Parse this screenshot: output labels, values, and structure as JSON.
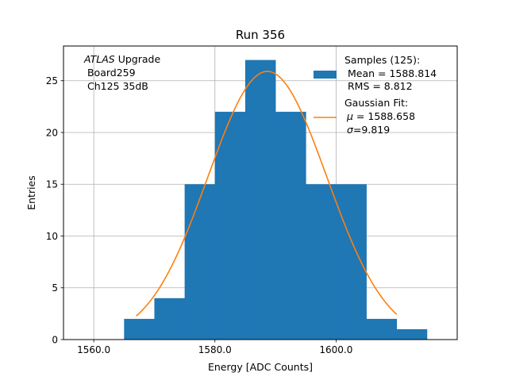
{
  "chart_data": {
    "type": "bar",
    "title": "Run 356",
    "xlabel": "Energy [ADC Counts]",
    "ylabel": "Entries",
    "xlim": [
      1555,
      1620
    ],
    "ylim": [
      0,
      28.35
    ],
    "grid": true,
    "x_ticks": [
      1560,
      1580,
      1600
    ],
    "x_tick_labels": [
      "1560.0",
      "1580.0",
      "1600.0"
    ],
    "y_ticks": [
      0,
      5,
      10,
      15,
      20,
      25
    ],
    "y_tick_labels": [
      "0",
      "5",
      "10",
      "15",
      "20",
      "25"
    ],
    "histogram": {
      "color": "#1f77b4",
      "bin_edges": [
        1565,
        1570,
        1575,
        1580,
        1585,
        1590,
        1595,
        1600,
        1605,
        1610,
        1615
      ],
      "counts": [
        2,
        4,
        15,
        22,
        27,
        22,
        15,
        15,
        2,
        1
      ]
    },
    "gaussian_fit": {
      "color": "#ff7f0e",
      "mu": 1588.658,
      "sigma": 9.819,
      "amplitude": 25.9,
      "x_range": [
        1567,
        1610
      ]
    },
    "annotation": {
      "line1_italic": "ATLAS",
      "line1_rest": " Upgrade",
      "line2": " Board259",
      "line3": " Ch125 35dB"
    },
    "legend": {
      "position": "top-right",
      "samples_label": "Samples (125):",
      "samples_mean": " Mean = 1588.814",
      "samples_rms": " RMS = 8.812",
      "fit_label": "Gaussian Fit:",
      "fit_mu_symbol": "μ",
      "fit_mu_value": " = 1588.658",
      "fit_sigma_symbol": "σ",
      "fit_sigma_value": "=9.819"
    }
  }
}
